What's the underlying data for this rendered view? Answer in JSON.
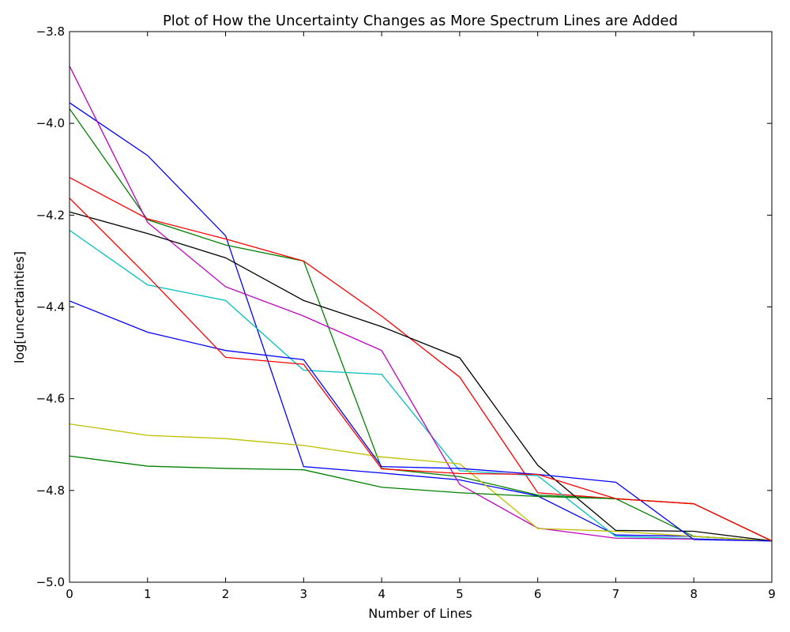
{
  "chart_data": {
    "type": "line",
    "title": "Plot of How the Uncertainty Changes as More Spectrum Lines are Added",
    "xlabel": "Number of Lines",
    "ylabel": "log[uncertainties]",
    "xlim": [
      0,
      9
    ],
    "ylim": [
      -5.0,
      -3.8
    ],
    "xticks": [
      0,
      1,
      2,
      3,
      4,
      5,
      6,
      7,
      8,
      9
    ],
    "yticks": [
      -5.0,
      -4.8,
      -4.6,
      -4.4,
      -4.2,
      -4.0,
      -3.8
    ],
    "xtick_labels": [
      "0",
      "1",
      "2",
      "3",
      "4",
      "5",
      "6",
      "7",
      "8",
      "9"
    ],
    "ytick_labels": [
      "−5.0",
      "−4.8",
      "−4.6",
      "−4.4",
      "−4.2",
      "−4.0",
      "−3.8"
    ],
    "grid": false,
    "x": [
      0,
      1,
      2,
      3,
      4,
      5,
      6,
      7,
      8,
      9
    ],
    "series": [
      {
        "color": "#0000ff",
        "values": [
          -3.955,
          -4.07,
          -4.245,
          -4.748,
          -4.762,
          -4.777,
          -4.812,
          -4.897,
          -4.9,
          -4.91
        ]
      },
      {
        "color": "#008000",
        "values": [
          -3.968,
          -4.21,
          -4.265,
          -4.3,
          -4.752,
          -4.77,
          -4.81,
          -4.818,
          -4.9,
          -4.91
        ]
      },
      {
        "color": "#ff0000",
        "values": [
          -4.118,
          -4.208,
          -4.252,
          -4.3,
          -4.42,
          -4.553,
          -4.805,
          -4.818,
          -4.829,
          -4.91
        ]
      },
      {
        "color": "#00bfbf",
        "values": [
          -4.233,
          -4.352,
          -4.386,
          -4.538,
          -4.547,
          -4.757,
          -4.768,
          -4.9,
          -4.905,
          -4.91
        ]
      },
      {
        "color": "#bf00bf",
        "values": [
          -3.875,
          -4.216,
          -4.356,
          -4.42,
          -4.495,
          -4.787,
          -4.882,
          -4.904,
          -4.906,
          -4.91
        ]
      },
      {
        "color": "#bfbf00",
        "values": [
          -4.655,
          -4.68,
          -4.687,
          -4.702,
          -4.727,
          -4.742,
          -4.883,
          -4.889,
          -4.9,
          -4.91
        ]
      },
      {
        "color": "#000000",
        "values": [
          -4.193,
          -4.24,
          -4.293,
          -4.386,
          -4.443,
          -4.511,
          -4.745,
          -4.887,
          -4.889,
          -4.91
        ]
      },
      {
        "color": "#0000ff",
        "values": [
          -4.387,
          -4.455,
          -4.495,
          -4.515,
          -4.748,
          -4.752,
          -4.765,
          -4.782,
          -4.907,
          -4.91
        ]
      },
      {
        "color": "#008000",
        "values": [
          -4.725,
          -4.747,
          -4.752,
          -4.755,
          -4.793,
          -4.805,
          -4.813,
          -4.818,
          -4.829,
          -4.91
        ]
      },
      {
        "color": "#ff0000",
        "values": [
          -4.163,
          -4.333,
          -4.51,
          -4.525,
          -4.753,
          -4.763,
          -4.765,
          -4.818,
          -4.829,
          -4.91
        ]
      }
    ]
  }
}
